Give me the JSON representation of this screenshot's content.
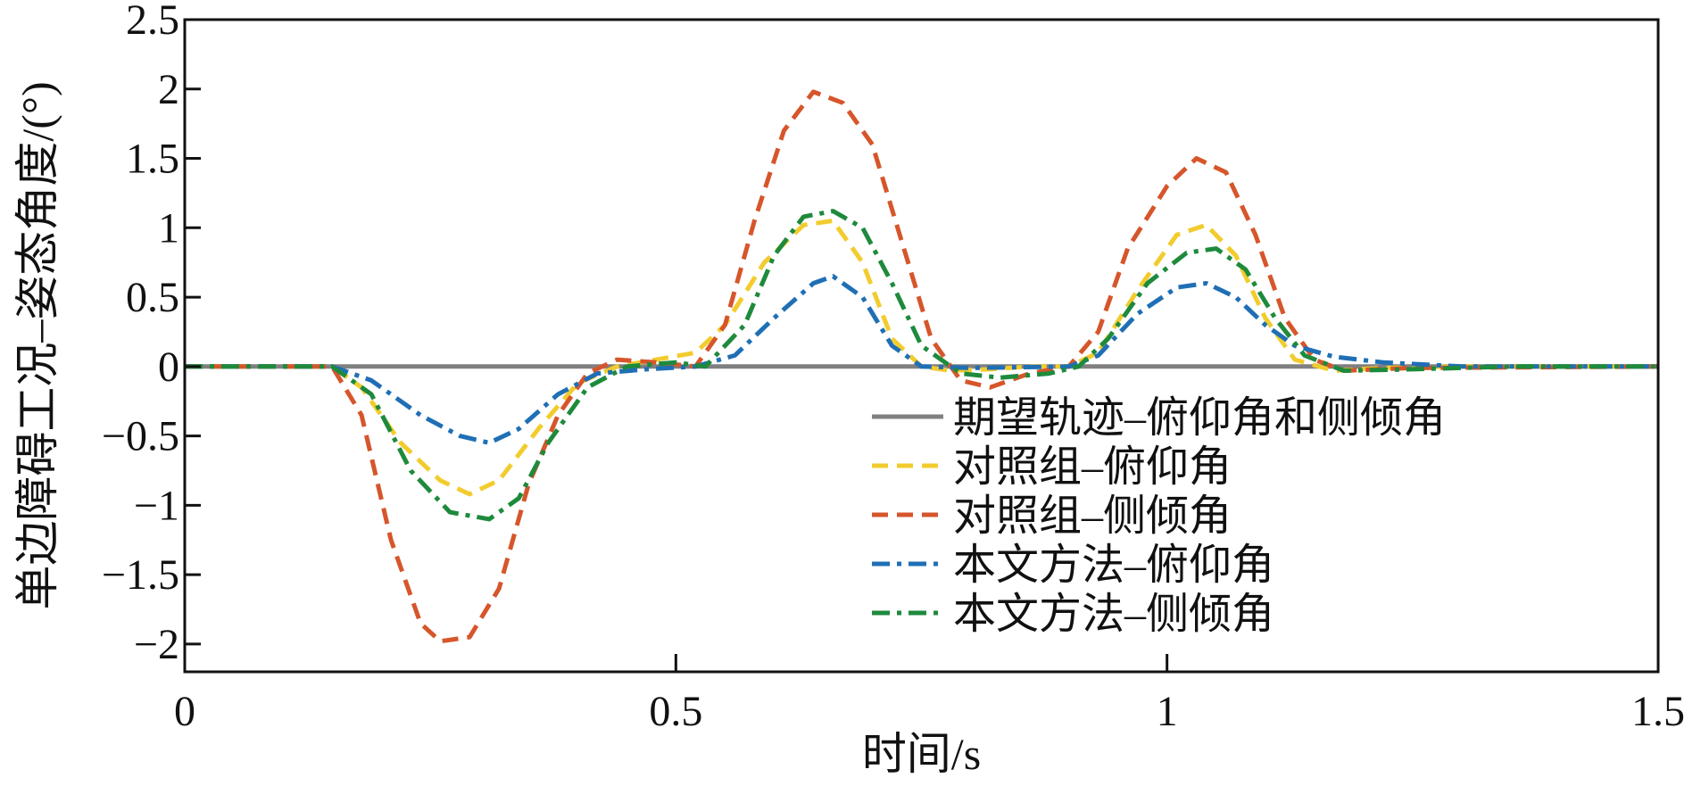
{
  "chart_data": {
    "type": "line",
    "title": "",
    "xlabel": "时间/s",
    "ylabel": "单边障碍工况–姿态角度/(°)",
    "xlim": [
      0,
      1.5
    ],
    "ylim": [
      -2.2,
      2.5
    ],
    "x_ticks": [
      "0",
      "0.5",
      "1",
      "1.5"
    ],
    "y_ticks": [
      "2.5",
      "2",
      "1.5",
      "1",
      "0.5",
      "0",
      "−0.5",
      "−1",
      "−1.5",
      "−2"
    ],
    "x_tick_values": [
      0,
      0.5,
      1,
      1.5
    ],
    "y_tick_values": [
      2.5,
      2,
      1.5,
      1,
      0.5,
      0,
      -0.5,
      -1,
      -1.5,
      -2
    ],
    "grid": false,
    "legend_position": "bottom-right",
    "series": [
      {
        "name": "期望轨迹–俯仰角和侧倾角",
        "color": "#808080",
        "style": "solid",
        "points": [
          [
            0,
            0
          ],
          [
            1.5,
            0
          ]
        ]
      },
      {
        "name": "对照组–俯仰角",
        "color": "#F2CC2E",
        "style": "dash",
        "points": [
          [
            0,
            0
          ],
          [
            0.15,
            0
          ],
          [
            0.18,
            -0.15
          ],
          [
            0.22,
            -0.55
          ],
          [
            0.26,
            -0.82
          ],
          [
            0.29,
            -0.92
          ],
          [
            0.32,
            -0.82
          ],
          [
            0.36,
            -0.45
          ],
          [
            0.4,
            -0.12
          ],
          [
            0.44,
            0
          ],
          [
            0.48,
            0.05
          ],
          [
            0.52,
            0.1
          ],
          [
            0.55,
            0.3
          ],
          [
            0.59,
            0.75
          ],
          [
            0.63,
            1.02
          ],
          [
            0.66,
            1.05
          ],
          [
            0.69,
            0.75
          ],
          [
            0.72,
            0.2
          ],
          [
            0.75,
            0
          ],
          [
            0.78,
            -0.03
          ],
          [
            0.82,
            -0.02
          ],
          [
            0.86,
            0
          ],
          [
            0.9,
            0
          ],
          [
            0.93,
            0.1
          ],
          [
            0.97,
            0.55
          ],
          [
            1.01,
            0.95
          ],
          [
            1.04,
            1.02
          ],
          [
            1.07,
            0.8
          ],
          [
            1.1,
            0.35
          ],
          [
            1.13,
            0.05
          ],
          [
            1.17,
            -0.03
          ],
          [
            1.22,
            -0.01
          ],
          [
            1.3,
            0
          ],
          [
            1.5,
            0
          ]
        ]
      },
      {
        "name": "对照组–侧倾角",
        "color": "#D6562B",
        "style": "dash",
        "points": [
          [
            0,
            0
          ],
          [
            0.15,
            0
          ],
          [
            0.18,
            -0.35
          ],
          [
            0.21,
            -1.25
          ],
          [
            0.24,
            -1.85
          ],
          [
            0.26,
            -1.98
          ],
          [
            0.29,
            -1.95
          ],
          [
            0.32,
            -1.6
          ],
          [
            0.35,
            -0.85
          ],
          [
            0.38,
            -0.35
          ],
          [
            0.41,
            -0.05
          ],
          [
            0.44,
            0.05
          ],
          [
            0.48,
            0.03
          ],
          [
            0.52,
            0
          ],
          [
            0.55,
            0.3
          ],
          [
            0.58,
            1.05
          ],
          [
            0.61,
            1.7
          ],
          [
            0.64,
            1.98
          ],
          [
            0.67,
            1.9
          ],
          [
            0.7,
            1.6
          ],
          [
            0.73,
            0.9
          ],
          [
            0.76,
            0.2
          ],
          [
            0.79,
            -0.1
          ],
          [
            0.82,
            -0.15
          ],
          [
            0.86,
            -0.05
          ],
          [
            0.9,
            0
          ],
          [
            0.93,
            0.25
          ],
          [
            0.96,
            0.85
          ],
          [
            1.0,
            1.3
          ],
          [
            1.03,
            1.5
          ],
          [
            1.06,
            1.4
          ],
          [
            1.09,
            0.95
          ],
          [
            1.12,
            0.35
          ],
          [
            1.15,
            0.05
          ],
          [
            1.18,
            -0.03
          ],
          [
            1.25,
            -0.01
          ],
          [
            1.5,
            0
          ]
        ]
      },
      {
        "name": "本文方法–俯仰角",
        "color": "#1F6FB5",
        "style": "dashdot",
        "points": [
          [
            0,
            0
          ],
          [
            0.15,
            0
          ],
          [
            0.19,
            -0.1
          ],
          [
            0.24,
            -0.35
          ],
          [
            0.28,
            -0.5
          ],
          [
            0.31,
            -0.55
          ],
          [
            0.34,
            -0.45
          ],
          [
            0.38,
            -0.2
          ],
          [
            0.42,
            -0.05
          ],
          [
            0.47,
            -0.02
          ],
          [
            0.52,
            0
          ],
          [
            0.56,
            0.08
          ],
          [
            0.6,
            0.35
          ],
          [
            0.64,
            0.6
          ],
          [
            0.66,
            0.65
          ],
          [
            0.69,
            0.5
          ],
          [
            0.72,
            0.15
          ],
          [
            0.75,
            0
          ],
          [
            0.8,
            -0.01
          ],
          [
            0.9,
            0
          ],
          [
            0.93,
            0.08
          ],
          [
            0.97,
            0.38
          ],
          [
            1.01,
            0.57
          ],
          [
            1.04,
            0.6
          ],
          [
            1.07,
            0.5
          ],
          [
            1.1,
            0.3
          ],
          [
            1.13,
            0.15
          ],
          [
            1.17,
            0.07
          ],
          [
            1.22,
            0.03
          ],
          [
            1.3,
            0
          ],
          [
            1.5,
            0
          ]
        ]
      },
      {
        "name": "本文方法–侧倾角",
        "color": "#1E8A3C",
        "style": "dashdot",
        "points": [
          [
            0,
            0
          ],
          [
            0.15,
            0
          ],
          [
            0.19,
            -0.2
          ],
          [
            0.23,
            -0.75
          ],
          [
            0.27,
            -1.05
          ],
          [
            0.31,
            -1.1
          ],
          [
            0.34,
            -0.95
          ],
          [
            0.37,
            -0.55
          ],
          [
            0.41,
            -0.15
          ],
          [
            0.45,
            0
          ],
          [
            0.5,
            0.03
          ],
          [
            0.53,
            0
          ],
          [
            0.57,
            0.3
          ],
          [
            0.6,
            0.8
          ],
          [
            0.63,
            1.08
          ],
          [
            0.66,
            1.12
          ],
          [
            0.69,
            1.0
          ],
          [
            0.72,
            0.6
          ],
          [
            0.75,
            0.15
          ],
          [
            0.79,
            -0.05
          ],
          [
            0.83,
            -0.08
          ],
          [
            0.88,
            -0.05
          ],
          [
            0.91,
            0
          ],
          [
            0.94,
            0.2
          ],
          [
            0.98,
            0.6
          ],
          [
            1.02,
            0.82
          ],
          [
            1.05,
            0.85
          ],
          [
            1.08,
            0.7
          ],
          [
            1.11,
            0.35
          ],
          [
            1.14,
            0.08
          ],
          [
            1.18,
            -0.03
          ],
          [
            1.25,
            -0.02
          ],
          [
            1.35,
            0
          ],
          [
            1.5,
            0
          ]
        ]
      }
    ]
  }
}
